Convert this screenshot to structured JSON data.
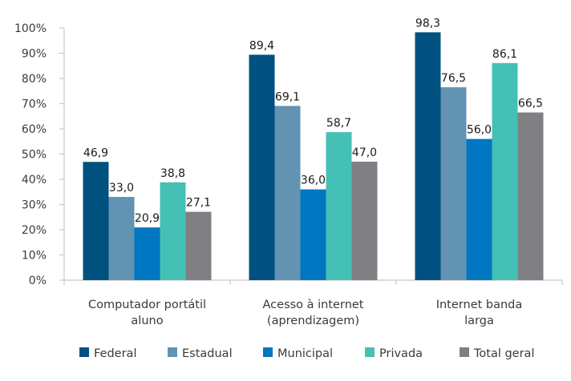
{
  "chart_data": {
    "type": "bar",
    "title": "",
    "xlabel": "",
    "ylabel": "",
    "ylim": [
      0,
      100
    ],
    "y_ticks": [
      "0%",
      "10%",
      "20%",
      "30%",
      "40%",
      "50%",
      "60%",
      "70%",
      "80%",
      "90%",
      "100%"
    ],
    "grid": false,
    "legend_position": "bottom",
    "categories": [
      [
        "Computador portátil",
        "aluno"
      ],
      [
        "Acesso à internet",
        "(aprendizagem)"
      ],
      [
        "Internet banda",
        "larga"
      ]
    ],
    "series": [
      {
        "name": "Federal",
        "color": "#00517f",
        "values": [
          46.9,
          89.4,
          98.3
        ],
        "labels": [
          "46,9",
          "89,4",
          "98,3"
        ]
      },
      {
        "name": "Estadual",
        "color": "#6393b2",
        "values": [
          33.0,
          69.1,
          76.5
        ],
        "labels": [
          "33,0",
          "69,1",
          "76,5"
        ]
      },
      {
        "name": "Municipal",
        "color": "#0077c0",
        "values": [
          20.9,
          36.0,
          56.0
        ],
        "labels": [
          "20,9",
          "36,0",
          "56,0"
        ]
      },
      {
        "name": "Privada",
        "color": "#45c0b5",
        "values": [
          38.8,
          58.7,
          86.1
        ],
        "labels": [
          "38,8",
          "58,7",
          "86,1"
        ]
      },
      {
        "name": "Total geral",
        "color": "#7f7f84",
        "values": [
          27.1,
          47.0,
          66.5
        ],
        "labels": [
          "27,1",
          "47,0",
          "66,5"
        ]
      }
    ]
  }
}
